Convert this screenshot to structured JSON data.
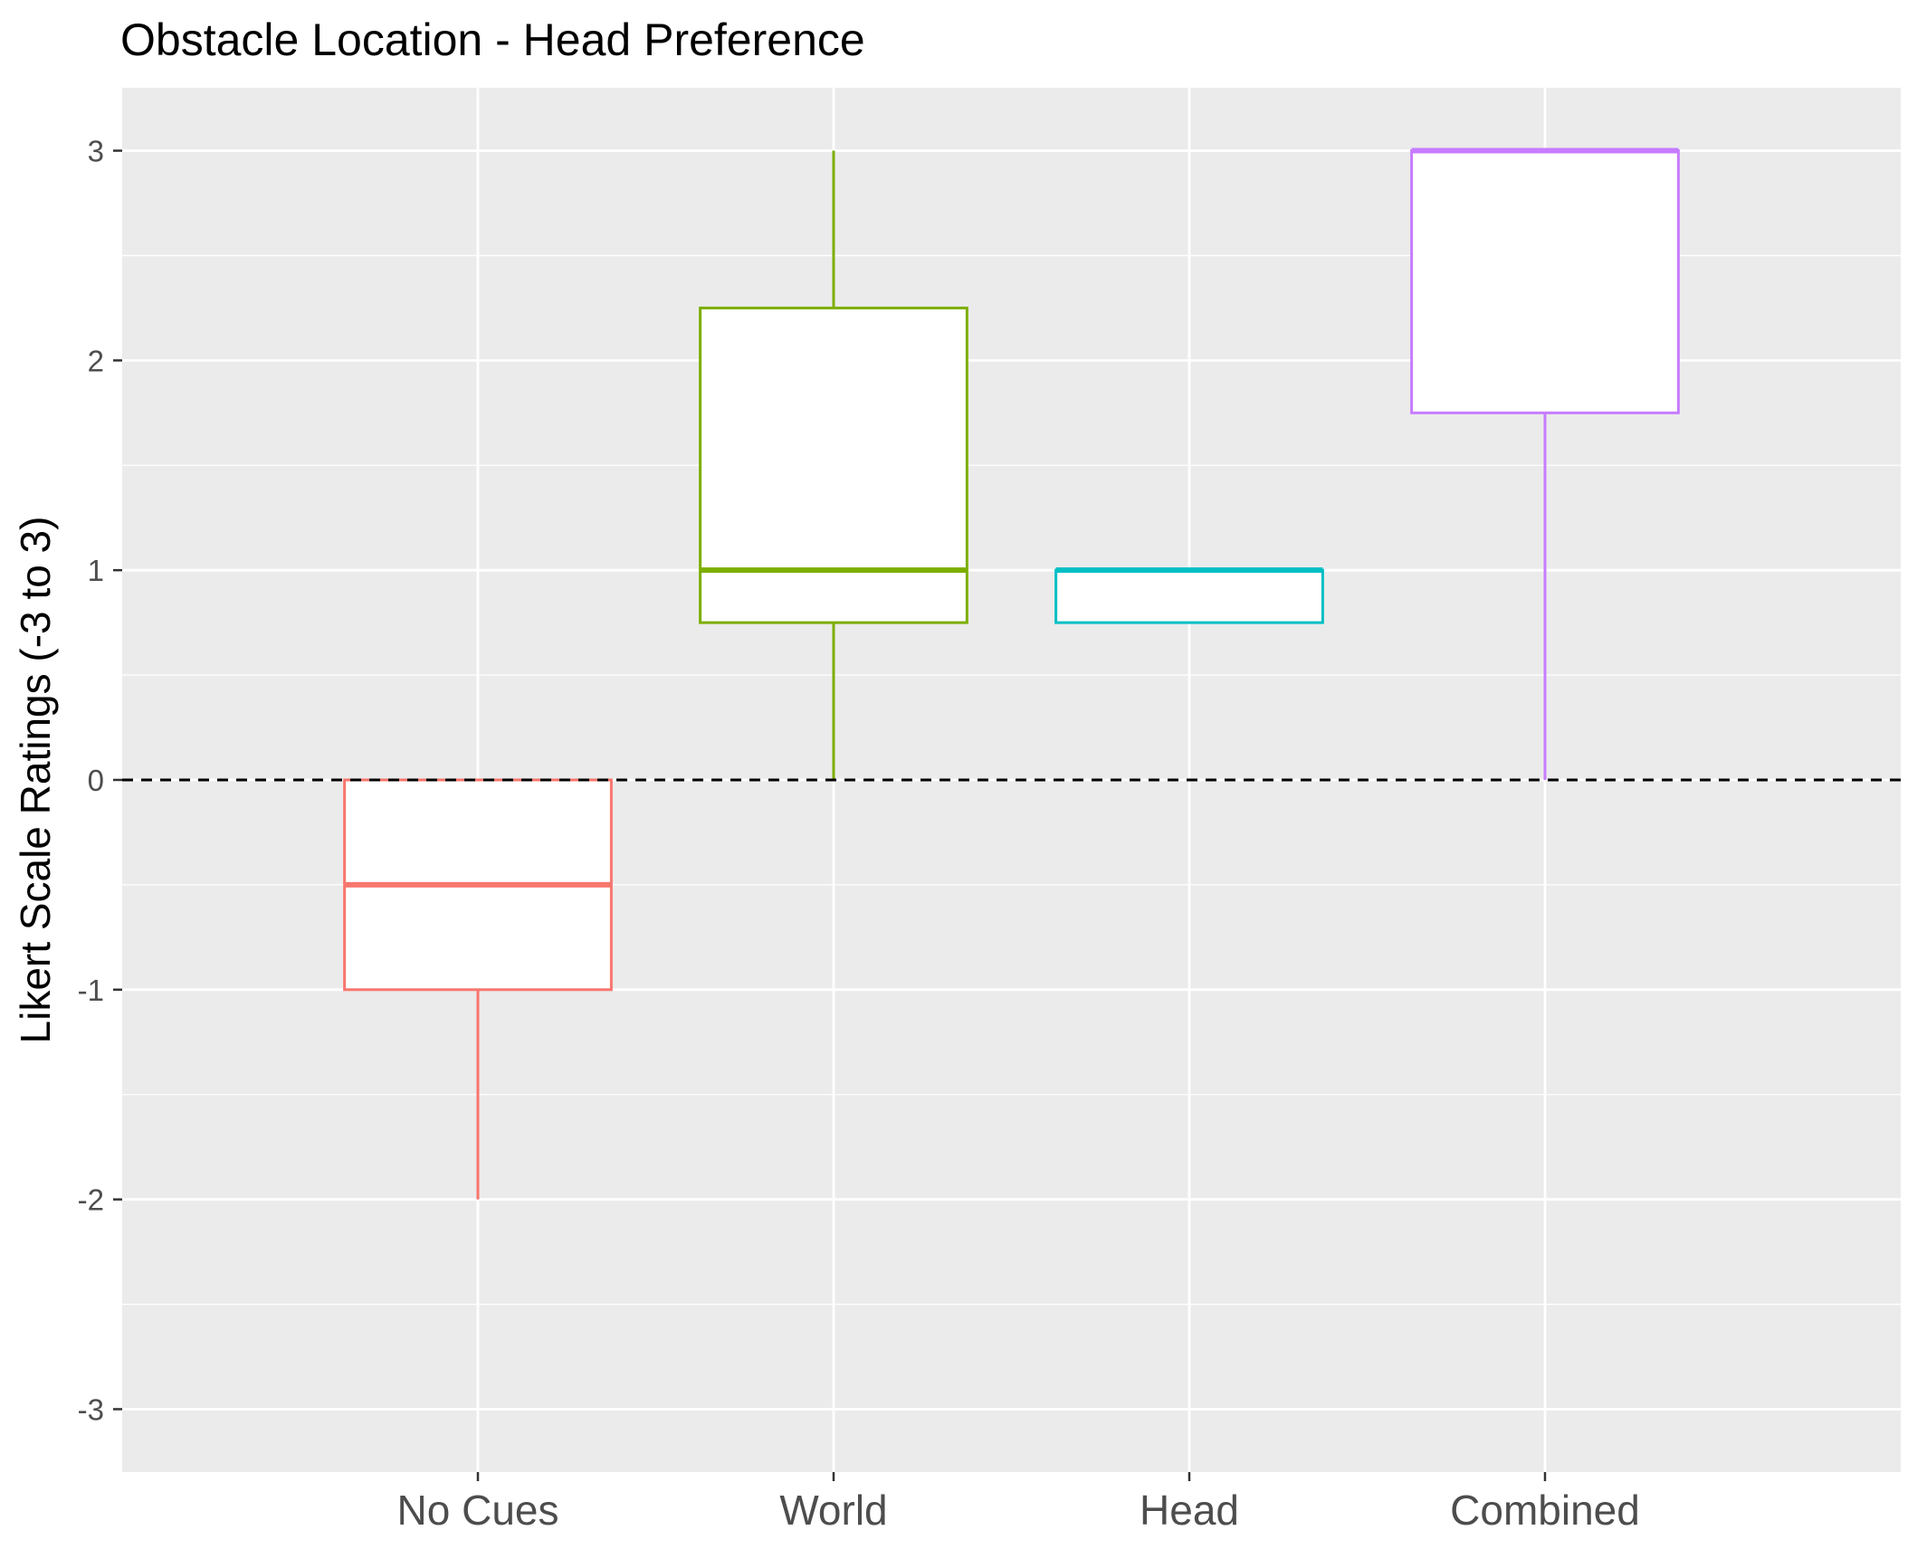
{
  "chart_data": {
    "type": "box",
    "title": "Obstacle Location - Head Preference",
    "xlabel": "",
    "ylabel": "Likert Scale Ratings (-3 to 3)",
    "ylim": [
      -3.3,
      3.3
    ],
    "yticks": [
      -3,
      -2,
      -1,
      0,
      1,
      2,
      3
    ],
    "ytick_labels": [
      "-3",
      "-2",
      "-1",
      "0",
      "1",
      "2",
      "3"
    ],
    "categories": [
      "No Cues",
      "World",
      "Head",
      "Combined"
    ],
    "colors": [
      "#F8766D",
      "#7CAE00",
      "#00BFC4",
      "#C77CFF"
    ],
    "boxes": [
      {
        "category": "No Cues",
        "whisker_low": -2,
        "q1": -1,
        "median": -0.5,
        "q3": 0,
        "whisker_high": 0
      },
      {
        "category": "World",
        "whisker_low": 0,
        "q1": 0.75,
        "median": 1,
        "q3": 2.25,
        "whisker_high": 3
      },
      {
        "category": "Head",
        "whisker_low": 0.75,
        "q1": 0.75,
        "median": 1,
        "q3": 1,
        "whisker_high": 1
      },
      {
        "category": "Combined",
        "whisker_low": 0,
        "q1": 1.75,
        "median": 3,
        "q3": 3,
        "whisker_high": 3
      }
    ],
    "reference_line": {
      "y": 0,
      "style": "dashed",
      "color": "#000000"
    },
    "grid": true,
    "panel_background": "#EBEBEB",
    "legend": "none"
  }
}
